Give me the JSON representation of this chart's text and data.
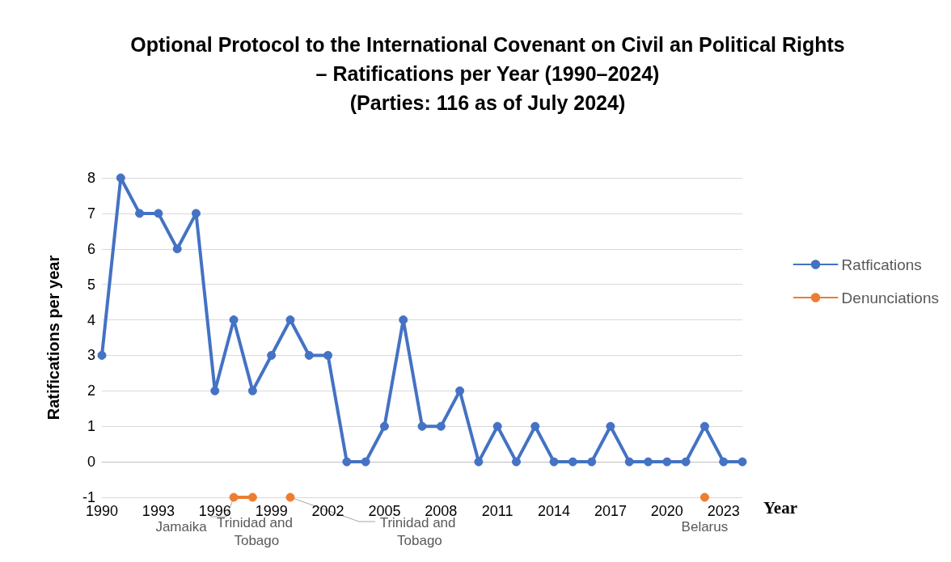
{
  "chart_data": {
    "type": "line",
    "title": "Optional Protocol to the International Covenant on Civil an Political Rights\n– Ratifications per Year (1990–2024)\n(Parties: 116 as of July 2024)",
    "xlabel": "Year",
    "ylabel": "Ratifications per year",
    "x": [
      1990,
      1991,
      1992,
      1993,
      1994,
      1995,
      1996,
      1997,
      1998,
      1999,
      2000,
      2001,
      2002,
      2003,
      2004,
      2005,
      2006,
      2007,
      2008,
      2009,
      2010,
      2011,
      2012,
      2013,
      2014,
      2015,
      2016,
      2017,
      2018,
      2019,
      2020,
      2021,
      2022,
      2023,
      2024
    ],
    "series": [
      {
        "name": "Ratfications",
        "color": "#4472c4",
        "values": [
          3,
          8,
          7,
          7,
          6,
          7,
          2,
          4,
          2,
          3,
          4,
          3,
          3,
          0,
          0,
          1,
          4,
          1,
          1,
          2,
          0,
          1,
          0,
          1,
          0,
          0,
          0,
          1,
          0,
          0,
          0,
          0,
          1,
          0,
          0
        ]
      },
      {
        "name": "Denunciations",
        "color": "#ed7d31",
        "values": [
          null,
          null,
          null,
          null,
          null,
          null,
          null,
          -1,
          -1,
          null,
          -1,
          null,
          null,
          null,
          null,
          null,
          null,
          null,
          null,
          null,
          null,
          null,
          null,
          null,
          null,
          null,
          null,
          null,
          null,
          null,
          null,
          null,
          -1,
          null,
          null
        ]
      }
    ],
    "xlim": [
      1990,
      2024
    ],
    "xticks": [
      1990,
      1993,
      1996,
      1999,
      2002,
      2005,
      2008,
      2011,
      2014,
      2017,
      2020,
      2023
    ],
    "ylim": [
      -1,
      8
    ],
    "yticks": [
      -1,
      0,
      1,
      2,
      3,
      4,
      5,
      6,
      7,
      8
    ],
    "annotations": [
      {
        "text": "Jamaika",
        "x": 1997,
        "y": -1
      },
      {
        "text": "Trinidad and Tobago",
        "x": 1998,
        "y": -1
      },
      {
        "text": "Trinidad and Tobago",
        "x": 2000,
        "y": -1
      },
      {
        "text": "Belarus",
        "x": 2022,
        "y": -1
      }
    ],
    "grid": "y",
    "legend": "right",
    "marker": "circle",
    "line_style": "solid"
  }
}
